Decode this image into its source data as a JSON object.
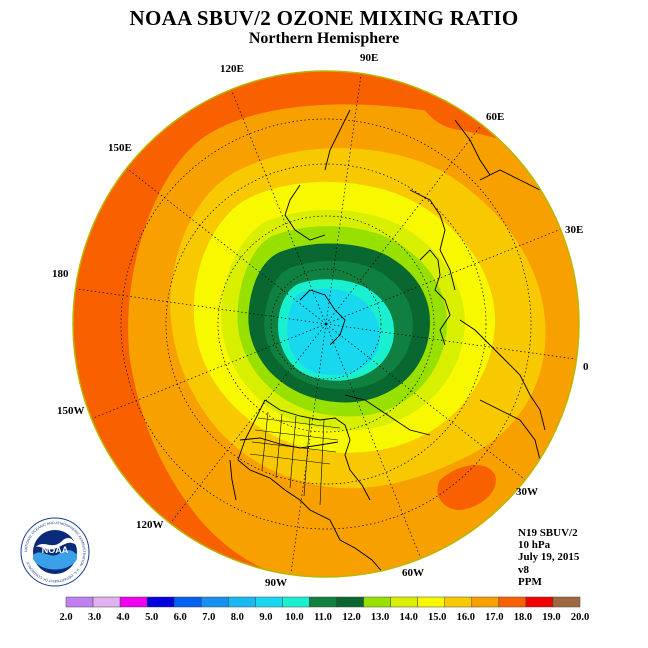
{
  "header": {
    "title": "NOAA SBUV/2 OZONE MIXING RATIO",
    "subtitle": "Northern Hemisphere"
  },
  "map": {
    "projection": "north-polar-stereographic",
    "longitude_labels": [
      "90E",
      "60E",
      "30E",
      "0",
      "30W",
      "60W",
      "90W",
      "120W",
      "150W",
      "180",
      "150E",
      "120E"
    ]
  },
  "info": {
    "instrument": "N19 SBUV/2",
    "pressure": "10 hPa",
    "date": "July 19, 2015",
    "version": "v8",
    "units": "PPM"
  },
  "logo": {
    "text": "NOAA",
    "ring_text": "NATIONAL OCEANIC AND ATMOSPHERIC ADMINISTRATION · U.S. DEPARTMENT OF COMMERCE"
  },
  "colorbar": {
    "labels": [
      "2.0",
      "3.0",
      "4.0",
      "5.0",
      "6.0",
      "7.0",
      "8.0",
      "9.0",
      "10.0",
      "11.0",
      "12.0",
      "13.0",
      "14.0",
      "15.0",
      "16.0",
      "17.0",
      "18.0",
      "19.0",
      "20.0"
    ],
    "colors": [
      "#c080f0",
      "#e0b0f0",
      "#f000f0",
      "#0000e0",
      "#0060f0",
      "#1890f0",
      "#18b8f0",
      "#18d8f0",
      "#18f0d0",
      "#108040",
      "#086830",
      "#98e000",
      "#d8f000",
      "#f8f800",
      "#f8c800",
      "#f8a000",
      "#f86000",
      "#f00000",
      "#a06840"
    ]
  },
  "contours": {
    "colors": {
      "outer": "#f86000",
      "band_17": "#f8a000",
      "band_16": "#f8c800",
      "band_15": "#f8f800",
      "band_14": "#d8f000",
      "band_13": "#98e000",
      "band_12": "#086830",
      "band_11": "#108040",
      "band_10": "#18f0d0",
      "band_9": "#18d8f0"
    }
  }
}
